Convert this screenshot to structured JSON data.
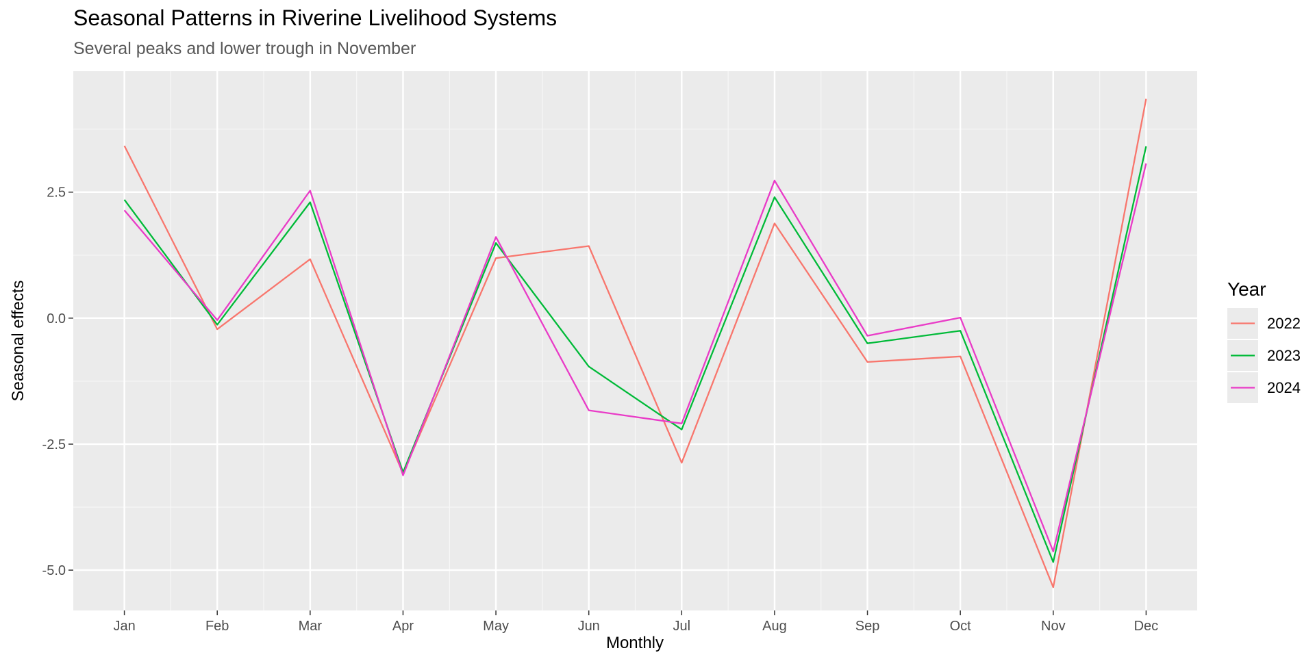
{
  "chart_data": {
    "type": "line",
    "title": "Seasonal Patterns in Riverine Livelihood Systems",
    "subtitle": "Several peaks and lower trough in November",
    "xlabel": "Monthly",
    "ylabel": "Seasonal effects",
    "ylim": [
      -5.8,
      4.9
    ],
    "yticks": [
      2.5,
      0.0,
      -2.5,
      -5.0
    ],
    "ytick_labels": [
      "2.5",
      "0.0",
      "-2.5",
      "-5.0"
    ],
    "grid": true,
    "legend": {
      "title": "Year",
      "placement": "right"
    },
    "x": [
      "Jan",
      "Feb",
      "Mar",
      "Apr",
      "May",
      "Jun",
      "Jul",
      "Aug",
      "Sep",
      "Oct",
      "Nov",
      "Dec"
    ],
    "series": [
      {
        "name": "2022",
        "color": "#F8766D",
        "values": [
          3.42,
          -0.22,
          1.17,
          -3.08,
          1.19,
          1.43,
          -2.87,
          1.88,
          -0.87,
          -0.76,
          -5.34,
          4.35
        ]
      },
      {
        "name": "2023",
        "color": "#00BA38",
        "values": [
          2.35,
          -0.13,
          2.3,
          -3.06,
          1.49,
          -0.96,
          -2.21,
          2.4,
          -0.5,
          -0.25,
          -4.84,
          3.41
        ]
      },
      {
        "name": "2024",
        "color": "#E93BC7",
        "values": [
          2.14,
          -0.04,
          2.53,
          -3.12,
          1.61,
          -1.83,
          -2.09,
          2.73,
          -0.35,
          0.01,
          -4.63,
          3.07
        ]
      }
    ]
  }
}
